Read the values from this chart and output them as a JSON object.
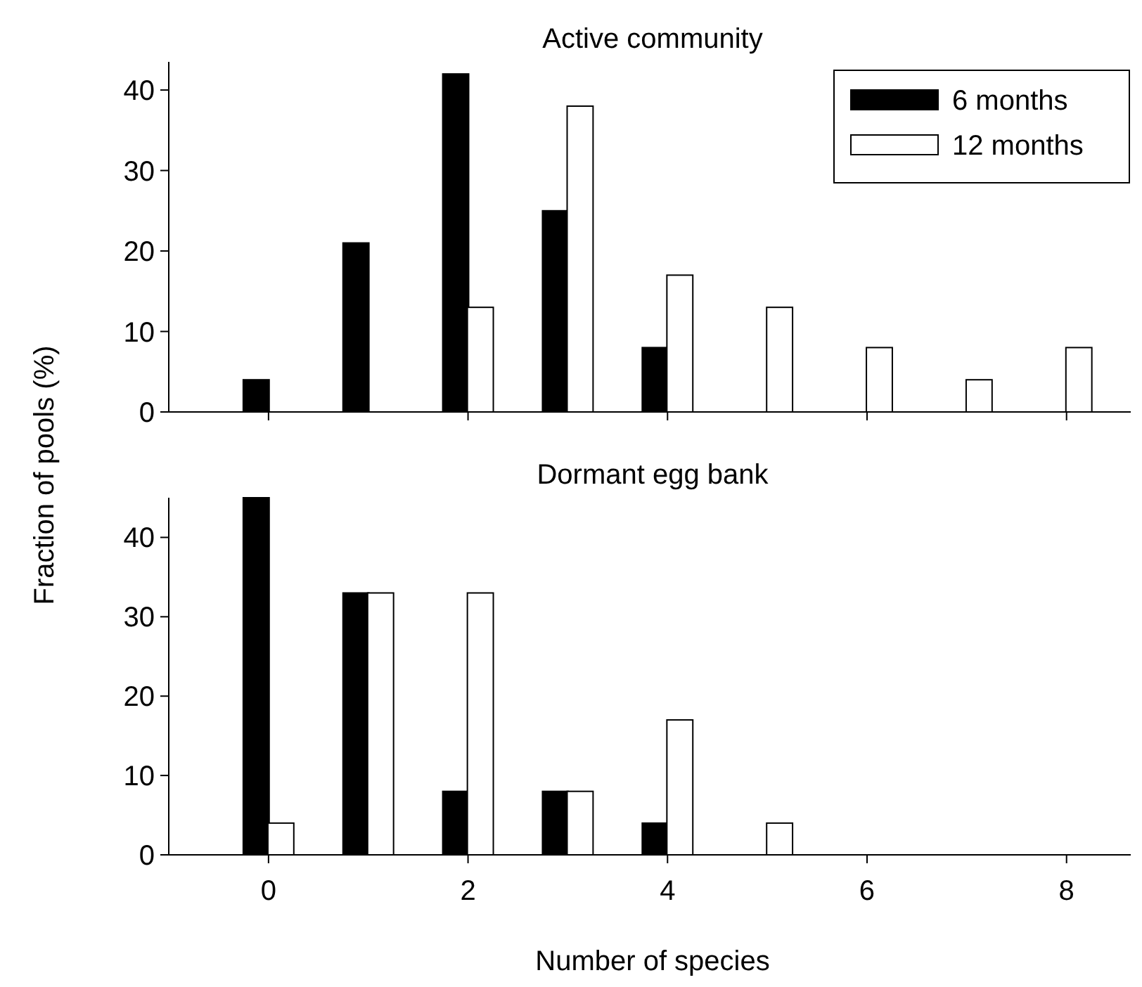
{
  "chart_data": [
    {
      "type": "bar",
      "title": "Active community",
      "ylabel": "Fraction of pools (%)",
      "xlim": [
        -1,
        8.7
      ],
      "xticks": [
        {
          "value": 0,
          "label": null
        },
        {
          "value": 2,
          "label": null
        },
        {
          "value": 4,
          "label": null
        },
        {
          "value": 6,
          "label": null
        },
        {
          "value": 8,
          "label": null
        }
      ],
      "ylim": [
        0,
        43.5
      ],
      "yticks": [
        0,
        10,
        20,
        30,
        40
      ],
      "tick_labels": "y",
      "legend": "top right",
      "grid": false,
      "series": [
        {
          "name": "6 months",
          "color": "#000000",
          "x": [
            0,
            1,
            2,
            3,
            4
          ],
          "values": [
            4,
            21,
            42,
            25,
            8
          ]
        },
        {
          "name": "12 months",
          "color": "#ffffff",
          "x": [
            2,
            3,
            4,
            5,
            6,
            7,
            8
          ],
          "values": [
            13,
            38,
            17,
            13,
            8,
            4,
            8
          ]
        }
      ]
    },
    {
      "type": "bar",
      "title": "Dormant egg bank",
      "xlabel": "Number of species",
      "xlim": [
        -1,
        8.7
      ],
      "xticks": [
        0,
        2,
        4,
        6,
        8
      ],
      "ylim": [
        0,
        45
      ],
      "yticks": [
        0,
        10,
        20,
        30,
        40
      ],
      "legend": false,
      "grid": false,
      "series": [
        {
          "color": "#000000",
          "x": [
            0,
            1,
            2,
            3,
            4
          ],
          "values": [
            45,
            33,
            8,
            8,
            4
          ]
        },
        {
          "color": "#ffffff",
          "x": [
            0,
            1,
            2,
            3,
            4,
            5
          ],
          "values": [
            4,
            33,
            33,
            8,
            17,
            4
          ]
        }
      ]
    }
  ]
}
